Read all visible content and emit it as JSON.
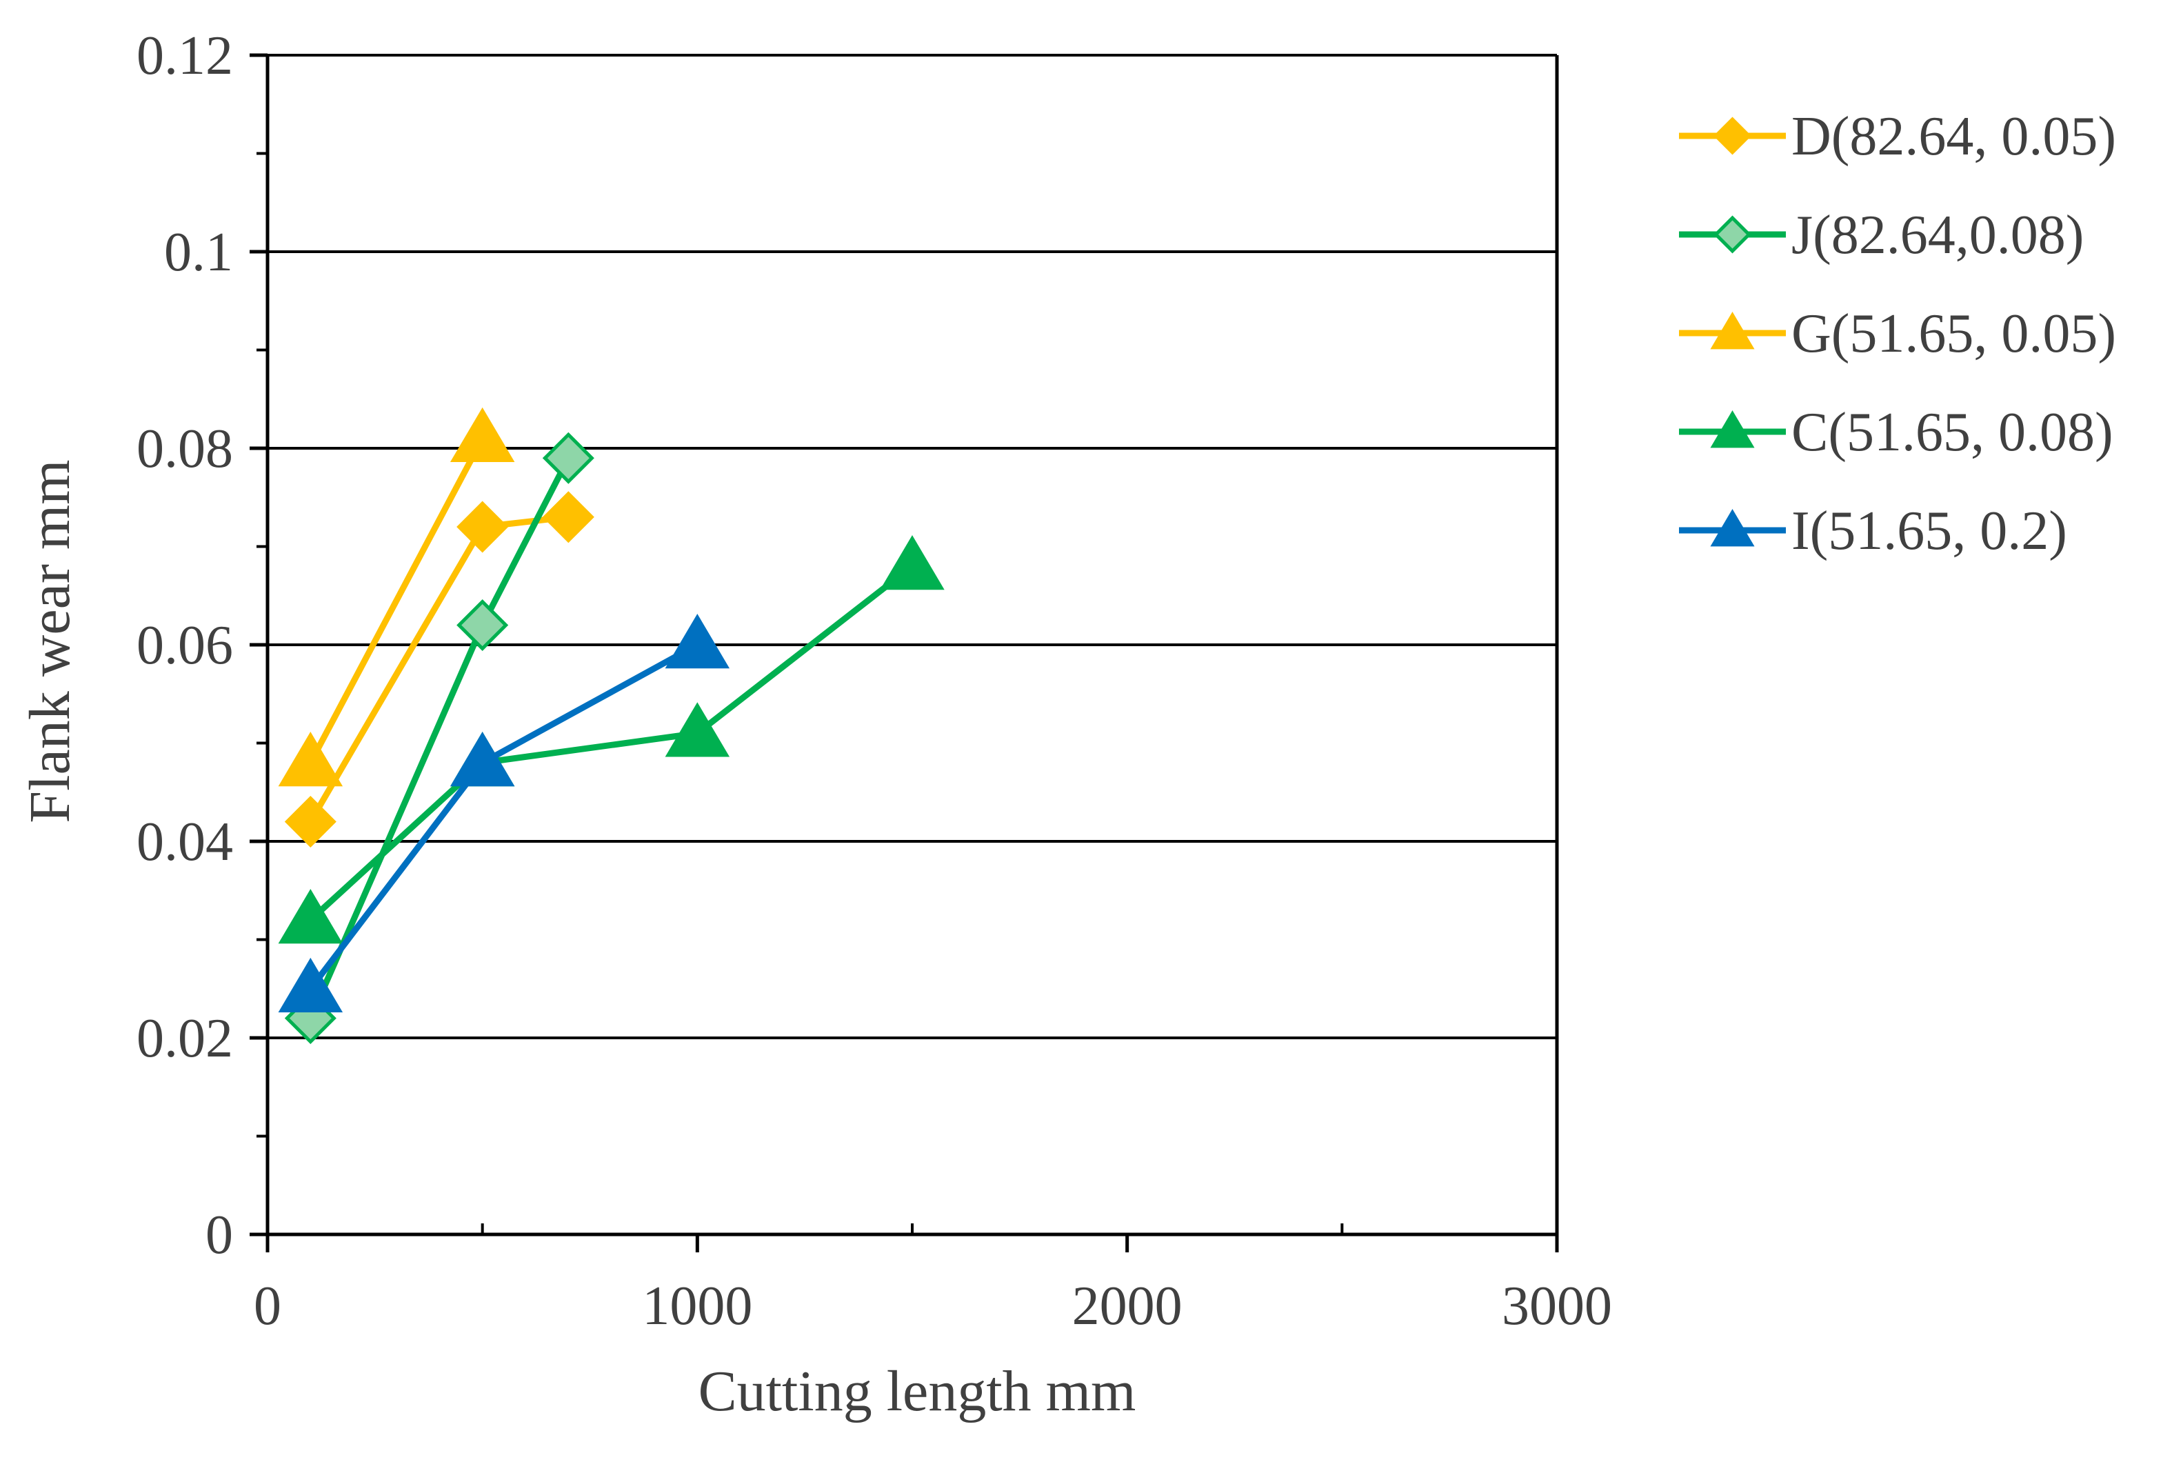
{
  "chart_data": {
    "type": "line",
    "title": "",
    "xlabel": "Cutting length mm",
    "ylabel": "Flank wear mm",
    "xlim": [
      0,
      3000
    ],
    "ylim": [
      0,
      0.12
    ],
    "x_ticks": [
      0,
      1000,
      2000,
      3000
    ],
    "x_tick_labels": [
      "0",
      "1000",
      "2000",
      "3000"
    ],
    "x_minor_ticks": [
      500,
      1500,
      2500
    ],
    "y_ticks": [
      0,
      0.02,
      0.04,
      0.06,
      0.08,
      0.1,
      0.12
    ],
    "y_tick_labels": [
      "0",
      "0.02",
      "0.04",
      "0.06",
      "0.08",
      "0.1",
      "0.12"
    ],
    "y_minor_ticks": [
      0.01,
      0.03,
      0.05,
      0.07,
      0.09,
      0.11
    ],
    "grid": "horizontal major gridlines",
    "legend_position": "right",
    "series": [
      {
        "name": "D(82.64, 0.05)",
        "color": "#FFC000",
        "marker": "diamond",
        "marker_fill": "#FFC000",
        "x": [
          100,
          500,
          700
        ],
        "values": [
          0.042,
          0.072,
          0.073
        ]
      },
      {
        "name": "J(82.64,0.08)",
        "color": "#00B050",
        "marker": "diamond",
        "marker_fill": "#8ED6A8",
        "x": [
          100,
          500,
          700
        ],
        "values": [
          0.022,
          0.062,
          0.079
        ]
      },
      {
        "name": "G(51.65, 0.05)",
        "color": "#FFC000",
        "marker": "triangle",
        "marker_fill": "#FFC000",
        "x": [
          100,
          500
        ],
        "values": [
          0.048,
          0.081
        ]
      },
      {
        "name": "C(51.65, 0.08)",
        "color": "#00B050",
        "marker": "triangle",
        "marker_fill": "#00B050",
        "x": [
          100,
          500,
          1000,
          1500
        ],
        "values": [
          0.032,
          0.048,
          0.051,
          0.068
        ]
      },
      {
        "name": "I(51.65, 0.2)",
        "color": "#0070C0",
        "marker": "triangle",
        "marker_fill": "#0070C0",
        "x": [
          100,
          500,
          1000
        ],
        "values": [
          0.025,
          0.048,
          0.06
        ]
      }
    ]
  }
}
